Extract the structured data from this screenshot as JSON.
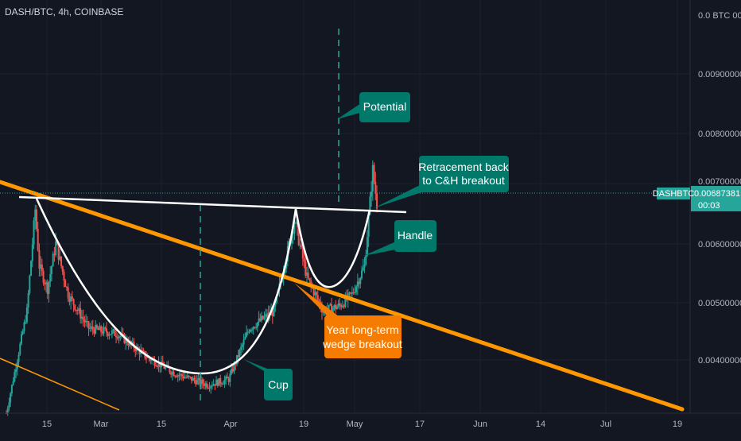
{
  "header": {
    "symbol_title": "DASH/BTC, 4h, COINBASE"
  },
  "price_axis": {
    "top_label": "0.0 BTC 000",
    "labels": [
      "0.00900000",
      "0.00800000",
      "0.00700000",
      "0.00600000",
      "0.00500000",
      "0.00400000"
    ],
    "symbol_tag": "DASHBTC",
    "last_price": "0.00687381",
    "countdown": "00:03"
  },
  "time_axis": {
    "labels": [
      "15",
      "Mar",
      "15",
      "Apr",
      "19",
      "May",
      "17",
      "Jun",
      "14",
      "Jul",
      "19"
    ]
  },
  "annotations": {
    "potential": "Potential",
    "retracement_line1": "Retracement back",
    "retracement_line2": "to C&H breakout",
    "handle": "Handle",
    "wedge_line1": "Year long-term",
    "wedge_line2": "wedge breakout",
    "cup": "Cup"
  },
  "colors": {
    "background": "#131722",
    "candle_up": "#26a69a",
    "candle_down": "#ef5350",
    "trendline": "#ff9800",
    "callout_teal": "#00796b",
    "callout_orange": "#f57c00",
    "price_line": "#26a69a"
  },
  "chart_data": {
    "type": "candlestick",
    "title": "DASH/BTC, 4h, COINBASE",
    "x_range": [
      "2021-02-06",
      "2021-07-19"
    ],
    "y_range": [
      0.0032,
      0.0105
    ],
    "last_price": 0.00687381,
    "price_path": [
      [
        "2021-02-06",
        0.0032
      ],
      [
        "2021-02-11",
        0.005
      ],
      [
        "2021-02-13",
        0.0068
      ],
      [
        "2021-02-14",
        0.0058
      ],
      [
        "2021-02-16",
        0.0054
      ],
      [
        "2021-02-18",
        0.0062
      ],
      [
        "2021-02-21",
        0.0053
      ],
      [
        "2021-02-26",
        0.0047
      ],
      [
        "2021-03-05",
        0.0046
      ],
      [
        "2021-03-12",
        0.0042
      ],
      [
        "2021-03-19",
        0.0039
      ],
      [
        "2021-03-27",
        0.0037
      ],
      [
        "2021-04-01",
        0.0038
      ],
      [
        "2021-04-06",
        0.0047
      ],
      [
        "2021-04-12",
        0.005
      ],
      [
        "2021-04-17",
        0.0066
      ],
      [
        "2021-04-20",
        0.0056
      ],
      [
        "2021-04-24",
        0.005
      ],
      [
        "2021-04-28",
        0.0051
      ],
      [
        "2021-05-01",
        0.0053
      ],
      [
        "2021-05-04",
        0.0058
      ],
      [
        "2021-05-06",
        0.0075
      ],
      [
        "2021-05-07",
        0.0069
      ]
    ]
  }
}
